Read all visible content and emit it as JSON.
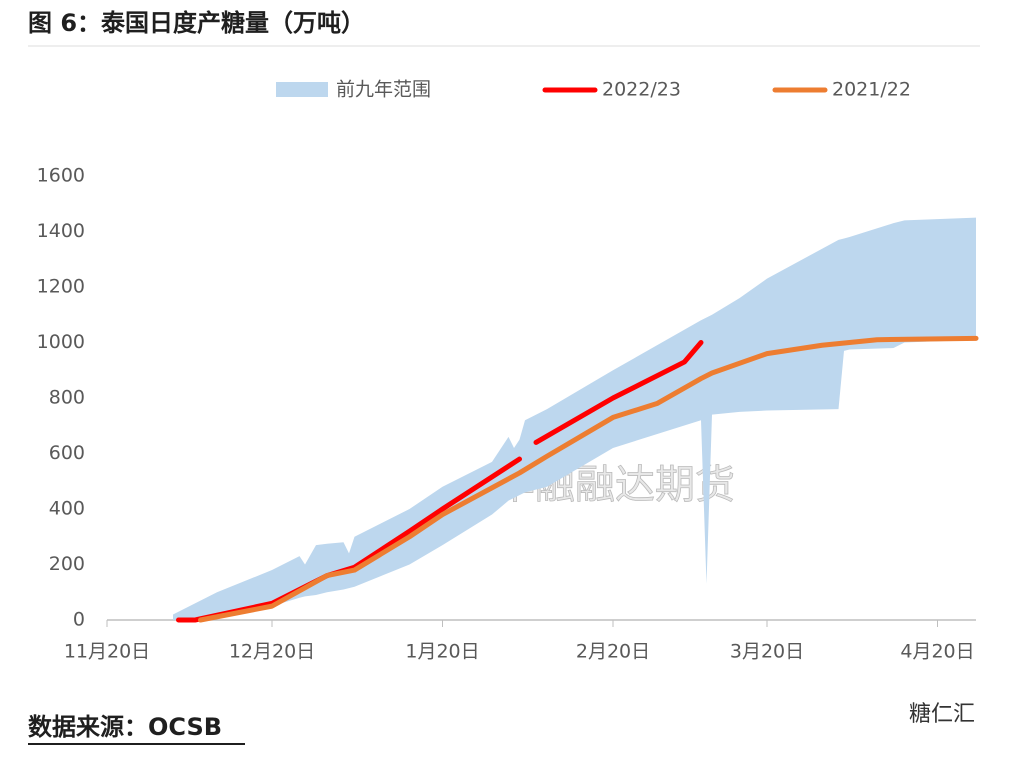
{
  "chart_data": {
    "type": "line",
    "title": "图 6：泰国日度产糖量（万吨）",
    "source": "数据来源：OCSB",
    "watermark": "华融融达期货",
    "brand": "糖仁汇",
    "xlim": [
      0,
      158
    ],
    "xticks": [
      {
        "value": 0,
        "label": "11月20日"
      },
      {
        "value": 30,
        "label": "12月20日"
      },
      {
        "value": 61,
        "label": "1月20日"
      },
      {
        "value": 92,
        "label": "2月20日"
      },
      {
        "value": 120,
        "label": "3月20日"
      },
      {
        "value": 151,
        "label": "4月20日"
      }
    ],
    "ylim": [
      0,
      1600
    ],
    "yticks": [
      0,
      200,
      400,
      600,
      800,
      1000,
      1200,
      1400,
      1600
    ],
    "band": {
      "name": "前九年范围",
      "color": "#bdd7ee",
      "x": [
        12,
        20,
        30,
        35,
        36,
        38,
        40,
        43,
        44,
        45,
        55,
        61,
        70,
        73,
        74,
        75,
        76,
        80,
        92,
        108,
        109,
        110,
        115,
        120,
        133,
        134,
        135,
        143,
        145,
        158
      ],
      "lower": [
        0,
        20,
        50,
        80,
        85,
        90,
        100,
        110,
        115,
        120,
        200,
        270,
        380,
        430,
        440,
        450,
        460,
        480,
        620,
        720,
        130,
        740,
        750,
        755,
        760,
        970,
        975,
        980,
        1000,
        1010
      ],
      "upper": [
        20,
        100,
        180,
        230,
        200,
        270,
        275,
        280,
        240,
        300,
        400,
        480,
        570,
        660,
        620,
        650,
        720,
        760,
        900,
        1080,
        1090,
        1100,
        1160,
        1230,
        1370,
        1375,
        1380,
        1430,
        1440,
        1450
      ]
    },
    "series": [
      {
        "name": "2022/23",
        "color": "#ff0000",
        "x": [
          13,
          16,
          30,
          40,
          45,
          55,
          61,
          75,
          76,
          78,
          92,
          105,
          108
        ],
        "values": [
          0,
          0,
          60,
          160,
          190,
          320,
          400,
          580,
          null,
          640,
          800,
          930,
          1000
        ]
      },
      {
        "name": "2021/22",
        "color": "#ed7d31",
        "x": [
          17,
          30,
          40,
          45,
          55,
          61,
          75,
          80,
          92,
          100,
          108,
          110,
          120,
          130,
          140,
          158
        ],
        "values": [
          0,
          50,
          160,
          180,
          300,
          380,
          530,
          590,
          730,
          780,
          870,
          890,
          960,
          990,
          1010,
          1015
        ]
      }
    ]
  }
}
